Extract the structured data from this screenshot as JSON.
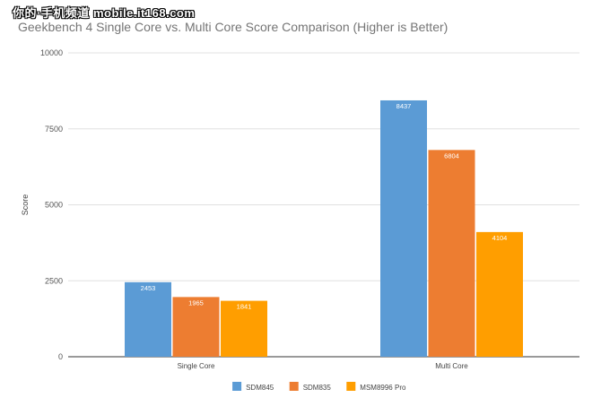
{
  "watermark": "你的·手机频道 mobile.it168.com",
  "chart_data": {
    "type": "bar",
    "title": "Geekbench 4 Single Core vs. Multi Core Score Comparison (Higher is Better)",
    "xlabel": "",
    "ylabel": "Score",
    "categories": [
      "Single Core",
      "Multi Core"
    ],
    "series": [
      {
        "name": "SDM845",
        "values": [
          2453,
          8437
        ],
        "color": "#5b9bd5"
      },
      {
        "name": "SDM835",
        "values": [
          1965,
          6804
        ],
        "color": "#ed7d31"
      },
      {
        "name": "MSM8996 Pro",
        "values": [
          1841,
          4104
        ],
        "color": "#ff9e00"
      }
    ],
    "ylim": [
      0,
      10000
    ],
    "yticks": [
      0,
      2500,
      5000,
      7500,
      10000
    ],
    "grid": true,
    "legend_position": "bottom",
    "data_labels": true
  }
}
